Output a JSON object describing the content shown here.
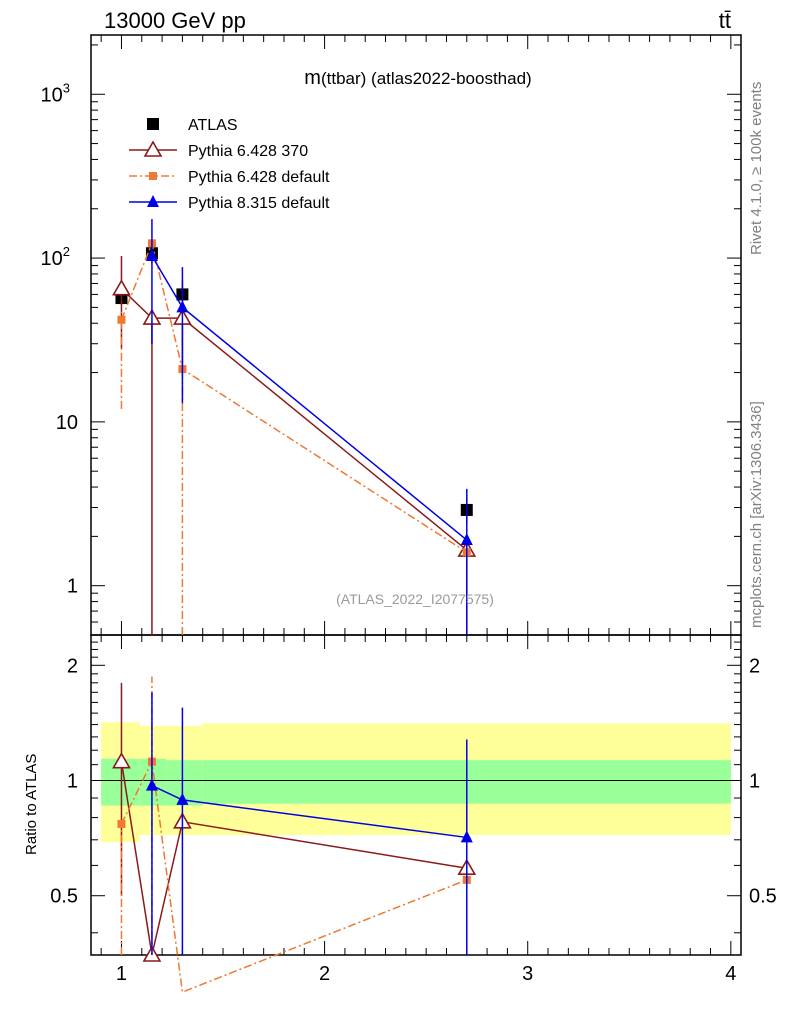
{
  "header": {
    "energy_label": "13000 GeV pp",
    "process_label": "tt̄"
  },
  "side": {
    "rivet_label": "Rivet 4.1.0, ≥ 100k events",
    "source_label": "mcplots.cern.ch [arXiv:1306.3436]"
  },
  "chart_data": {
    "type": "line",
    "title": "m(ttbar) (atlas2022-boosthad)",
    "title_main": "m",
    "title_rest": "(ttbar) (atlas2022-boosthad)",
    "watermark": "(ATLAS_2022_I2077575)",
    "x": [
      1.0,
      1.15,
      1.3,
      2.7
    ],
    "xlim": [
      0.85,
      4.05
    ],
    "xticks": [
      "1",
      "2",
      "3",
      "4"
    ],
    "ylim": [
      0.5,
      2300
    ],
    "yscale": "log",
    "yticks": [
      "1",
      "10",
      "10^2",
      "10^3"
    ],
    "ratio_ylabel": "Ratio to ATLAS",
    "ratio_ylim": [
      0.35,
      2.4
    ],
    "ratio_yticks": [
      "0.5",
      "1",
      "2"
    ],
    "colors": {
      "atlas": "#000000",
      "py6_370": "#8b1a1a",
      "py6_default": "#f07830",
      "py8_default": "#0000e6",
      "band_inner": "#99ff99",
      "band_outer": "#ffff99"
    },
    "series": [
      {
        "name": "ATLAS",
        "values": [
          57,
          107,
          60,
          2.9
        ],
        "err_low": [
          5,
          8,
          5,
          0.5
        ],
        "err_high": [
          5,
          8,
          5,
          0.5
        ]
      },
      {
        "name": "Pythia 6.428 370",
        "values": [
          65,
          43,
          43,
          1.65
        ],
        "err_low": [
          37,
          43,
          23,
          1.65
        ],
        "err_high": [
          38,
          0,
          30,
          0.2
        ]
      },
      {
        "name": "Pythia 6.428 default",
        "values": [
          42,
          123,
          21,
          1.6
        ],
        "err_low": [
          30,
          30,
          21,
          0.3
        ],
        "err_high": [
          5,
          5,
          4,
          0.3
        ]
      },
      {
        "name": "Pythia 8.315 default",
        "values": [
          null,
          103,
          50,
          1.9
        ],
        "err_low": [
          null,
          73,
          37,
          1.9
        ],
        "err_high": [
          null,
          70,
          38,
          2.0
        ]
      }
    ],
    "ratio": {
      "series": [
        {
          "name": "Pythia 6.428 370",
          "values": [
            1.12,
            0.35,
            0.78,
            0.59
          ],
          "err_low": [
            0.62,
            0.0,
            0.0,
            0.0
          ],
          "err_high": [
            0.68,
            0.0,
            0.0,
            0.0
          ]
        },
        {
          "name": "Pythia 6.428 default",
          "values": [
            0.77,
            1.12,
            0.28,
            0.55
          ],
          "err_low": [
            0.42,
            0.8,
            0.0,
            0.0
          ],
          "err_high": [
            0.0,
            0.75,
            0.0,
            0.0
          ]
        },
        {
          "name": "Pythia 8.315 default",
          "values": [
            null,
            0.97,
            0.89,
            0.71
          ],
          "err_low": [
            null,
            0.62,
            0.54,
            0.36
          ],
          "err_high": [
            null,
            0.73,
            0.66,
            0.57
          ]
        }
      ],
      "band_segments": [
        {
          "x0": 0.9,
          "x1": 1.09,
          "inner_low": 0.86,
          "inner_high": 1.14,
          "outer_low": 0.69,
          "outer_high": 1.42
        },
        {
          "x0": 1.09,
          "x1": 1.22,
          "inner_low": 0.86,
          "inner_high": 1.14,
          "outer_low": 0.72,
          "outer_high": 1.39
        },
        {
          "x0": 1.22,
          "x1": 1.4,
          "inner_low": 0.86,
          "inner_high": 1.13,
          "outer_low": 0.72,
          "outer_high": 1.39
        },
        {
          "x0": 1.4,
          "x1": 4.0,
          "inner_low": 0.87,
          "inner_high": 1.13,
          "outer_low": 0.72,
          "outer_high": 1.41
        }
      ]
    }
  }
}
